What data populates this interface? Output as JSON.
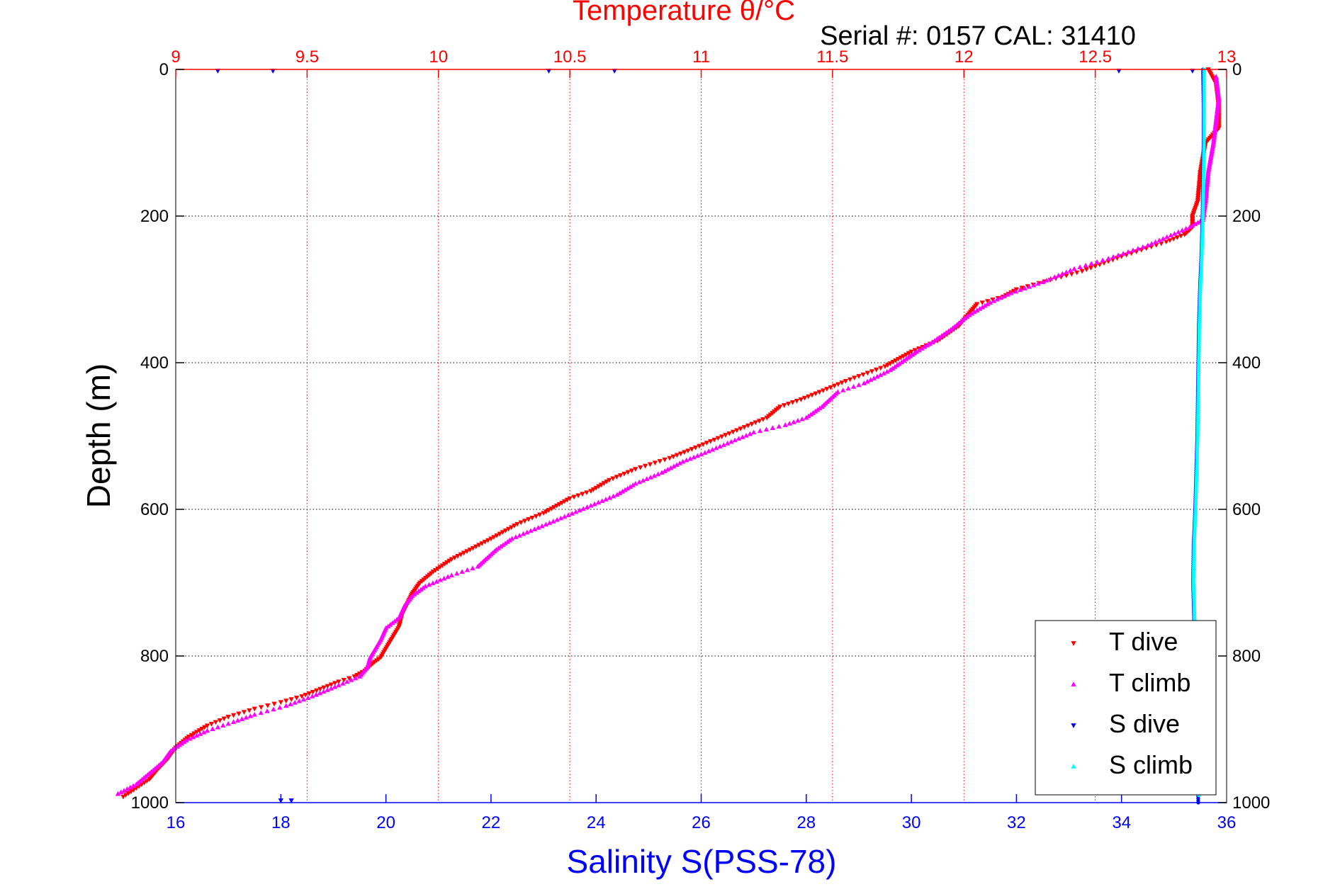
{
  "chart_data": {
    "type": "scatter",
    "title": "Temperature θ/°C",
    "subtitle": "Serial #: 0157  CAL: 31410",
    "xlabel": "Salinity S(PSS-78)",
    "ylabel": "Depth (m)",
    "x_salinity": {
      "lim": [
        16,
        36
      ],
      "ticks": [
        16,
        18,
        20,
        22,
        24,
        26,
        28,
        30,
        32,
        34,
        36
      ],
      "tick_labels": [
        "16",
        "18",
        "20",
        "22",
        "24",
        "26",
        "28",
        "30",
        "32",
        "34",
        "36"
      ]
    },
    "x_temperature": {
      "lim": [
        9,
        13
      ],
      "ticks": [
        9,
        9.5,
        10,
        10.5,
        11,
        11.5,
        12,
        12.5,
        13
      ],
      "tick_labels": [
        "9",
        "9.5",
        "10",
        "10.5",
        "11",
        "11.5",
        "12",
        "12.5",
        "13"
      ]
    },
    "y_depth": {
      "lim": [
        0,
        1000
      ],
      "reversed": true,
      "ticks": [
        0,
        200,
        400,
        600,
        800,
        1000
      ],
      "tick_labels": [
        "0",
        "200",
        "400",
        "600",
        "800",
        "1000"
      ]
    },
    "grid": true,
    "legend_position": "bottom-right",
    "colors": {
      "salinity_axis": "#0000ff",
      "temperature_axis": "#ff0000",
      "t_dive": "#ff0000",
      "t_climb": "#ff00ff",
      "s_dive": "#0000ff",
      "s_climb": "#00ffff"
    },
    "series": [
      {
        "name": "T dive",
        "axis": "temperature",
        "marker": "triangle-down",
        "color": "#ff0000",
        "points": [
          [
            12.93,
            0
          ],
          [
            12.96,
            20
          ],
          [
            12.97,
            50
          ],
          [
            12.97,
            80
          ],
          [
            12.92,
            100
          ],
          [
            12.9,
            140
          ],
          [
            12.89,
            180
          ],
          [
            12.87,
            200
          ],
          [
            12.87,
            215
          ],
          [
            12.84,
            225
          ],
          [
            12.77,
            235
          ],
          [
            12.6,
            255
          ],
          [
            12.45,
            275
          ],
          [
            12.35,
            285
          ],
          [
            12.2,
            300
          ],
          [
            12.15,
            310
          ],
          [
            12.05,
            320
          ],
          [
            11.98,
            350
          ],
          [
            11.9,
            370
          ],
          [
            11.8,
            385
          ],
          [
            11.75,
            395
          ],
          [
            11.7,
            405
          ],
          [
            11.55,
            425
          ],
          [
            11.45,
            440
          ],
          [
            11.38,
            450
          ],
          [
            11.3,
            460
          ],
          [
            11.25,
            475
          ],
          [
            11.15,
            490
          ],
          [
            11.05,
            505
          ],
          [
            10.95,
            520
          ],
          [
            10.88,
            530
          ],
          [
            10.75,
            545
          ],
          [
            10.65,
            560
          ],
          [
            10.58,
            575
          ],
          [
            10.5,
            585
          ],
          [
            10.45,
            595
          ],
          [
            10.4,
            605
          ],
          [
            10.3,
            620
          ],
          [
            10.2,
            640
          ],
          [
            10.12,
            655
          ],
          [
            10.05,
            668
          ],
          [
            9.98,
            685
          ],
          [
            9.93,
            700
          ],
          [
            9.9,
            715
          ],
          [
            9.88,
            730
          ],
          [
            9.86,
            745
          ],
          [
            9.85,
            760
          ],
          [
            9.83,
            772
          ],
          [
            9.8,
            790
          ],
          [
            9.78,
            802
          ],
          [
            9.75,
            810
          ],
          [
            9.72,
            820
          ],
          [
            9.68,
            828
          ],
          [
            9.62,
            835
          ],
          [
            9.55,
            845
          ],
          [
            9.48,
            855
          ],
          [
            9.4,
            863
          ],
          [
            9.3,
            872
          ],
          [
            9.2,
            883
          ],
          [
            9.12,
            895
          ],
          [
            9.05,
            910
          ],
          [
            9.0,
            925
          ],
          [
            8.97,
            940
          ],
          [
            8.93,
            955
          ],
          [
            8.9,
            968
          ],
          [
            8.85,
            980
          ],
          [
            8.8,
            992
          ]
        ]
      },
      {
        "name": "T climb",
        "axis": "temperature",
        "marker": "triangle-up",
        "color": "#ff00ff",
        "points": [
          [
            12.96,
            10
          ],
          [
            12.97,
            40
          ],
          [
            12.96,
            70
          ],
          [
            12.95,
            100
          ],
          [
            12.93,
            140
          ],
          [
            12.92,
            180
          ],
          [
            12.91,
            205
          ],
          [
            12.86,
            215
          ],
          [
            12.7,
            240
          ],
          [
            12.55,
            258
          ],
          [
            12.42,
            272
          ],
          [
            12.3,
            290
          ],
          [
            12.18,
            305
          ],
          [
            12.1,
            318
          ],
          [
            12.02,
            335
          ],
          [
            11.95,
            355
          ],
          [
            11.88,
            372
          ],
          [
            11.82,
            385
          ],
          [
            11.78,
            395
          ],
          [
            11.72,
            410
          ],
          [
            11.62,
            428
          ],
          [
            11.52,
            440
          ],
          [
            11.46,
            460
          ],
          [
            11.4,
            475
          ],
          [
            11.32,
            485
          ],
          [
            11.2,
            495
          ],
          [
            11.1,
            510
          ],
          [
            11.0,
            525
          ],
          [
            10.93,
            535
          ],
          [
            10.85,
            550
          ],
          [
            10.75,
            565
          ],
          [
            10.68,
            580
          ],
          [
            10.58,
            595
          ],
          [
            10.48,
            610
          ],
          [
            10.38,
            625
          ],
          [
            10.28,
            640
          ],
          [
            10.22,
            655
          ],
          [
            10.18,
            668
          ],
          [
            10.15,
            678
          ],
          [
            10.05,
            690
          ],
          [
            9.95,
            705
          ],
          [
            9.9,
            718
          ],
          [
            9.87,
            732
          ],
          [
            9.85,
            748
          ],
          [
            9.8,
            762
          ],
          [
            9.78,
            778
          ],
          [
            9.76,
            790
          ],
          [
            9.74,
            802
          ],
          [
            9.73,
            815
          ],
          [
            9.7,
            828
          ],
          [
            9.62,
            840
          ],
          [
            9.52,
            855
          ],
          [
            9.42,
            868
          ],
          [
            9.3,
            880
          ],
          [
            9.22,
            890
          ],
          [
            9.12,
            902
          ],
          [
            9.04,
            915
          ],
          [
            8.98,
            930
          ],
          [
            8.95,
            945
          ],
          [
            8.9,
            960
          ],
          [
            8.85,
            975
          ],
          [
            8.78,
            988
          ]
        ]
      },
      {
        "name": "S dive",
        "axis": "salinity",
        "marker": "triangle-down",
        "color": "#0000ff",
        "points": [
          [
            35.55,
            0
          ],
          [
            35.56,
            50
          ],
          [
            35.56,
            100
          ],
          [
            35.55,
            150
          ],
          [
            35.54,
            200
          ],
          [
            35.52,
            250
          ],
          [
            35.49,
            300
          ],
          [
            35.47,
            350
          ],
          [
            35.46,
            400
          ],
          [
            35.45,
            450
          ],
          [
            35.44,
            500
          ],
          [
            35.42,
            550
          ],
          [
            35.4,
            600
          ],
          [
            35.37,
            650
          ],
          [
            35.36,
            700
          ],
          [
            35.38,
            750
          ],
          [
            35.4,
            800
          ],
          [
            35.42,
            850
          ],
          [
            35.44,
            900
          ],
          [
            35.45,
            950
          ],
          [
            35.46,
            1000
          ]
        ]
      },
      {
        "name": "S climb",
        "axis": "salinity",
        "marker": "triangle-up",
        "color": "#00ffff",
        "points": [
          [
            35.57,
            0
          ],
          [
            35.57,
            50
          ],
          [
            35.57,
            100
          ],
          [
            35.56,
            150
          ],
          [
            35.55,
            200
          ],
          [
            35.53,
            250
          ],
          [
            35.5,
            300
          ],
          [
            35.48,
            350
          ],
          [
            35.47,
            400
          ],
          [
            35.46,
            450
          ],
          [
            35.45,
            500
          ],
          [
            35.43,
            550
          ],
          [
            35.41,
            600
          ],
          [
            35.38,
            650
          ],
          [
            35.37,
            700
          ],
          [
            35.39,
            750
          ],
          [
            35.41,
            800
          ],
          [
            35.43,
            850
          ],
          [
            35.45,
            900
          ],
          [
            35.46,
            950
          ],
          [
            35.47,
            990
          ]
        ]
      }
    ],
    "axis_edge_marks": {
      "s_dive_at_zero_depth": [
        16.8,
        17.85,
        23.1,
        24.35,
        33.95,
        35.35
      ],
      "s_dive_at_bottom_depth": [
        18.0,
        18.2
      ]
    }
  }
}
